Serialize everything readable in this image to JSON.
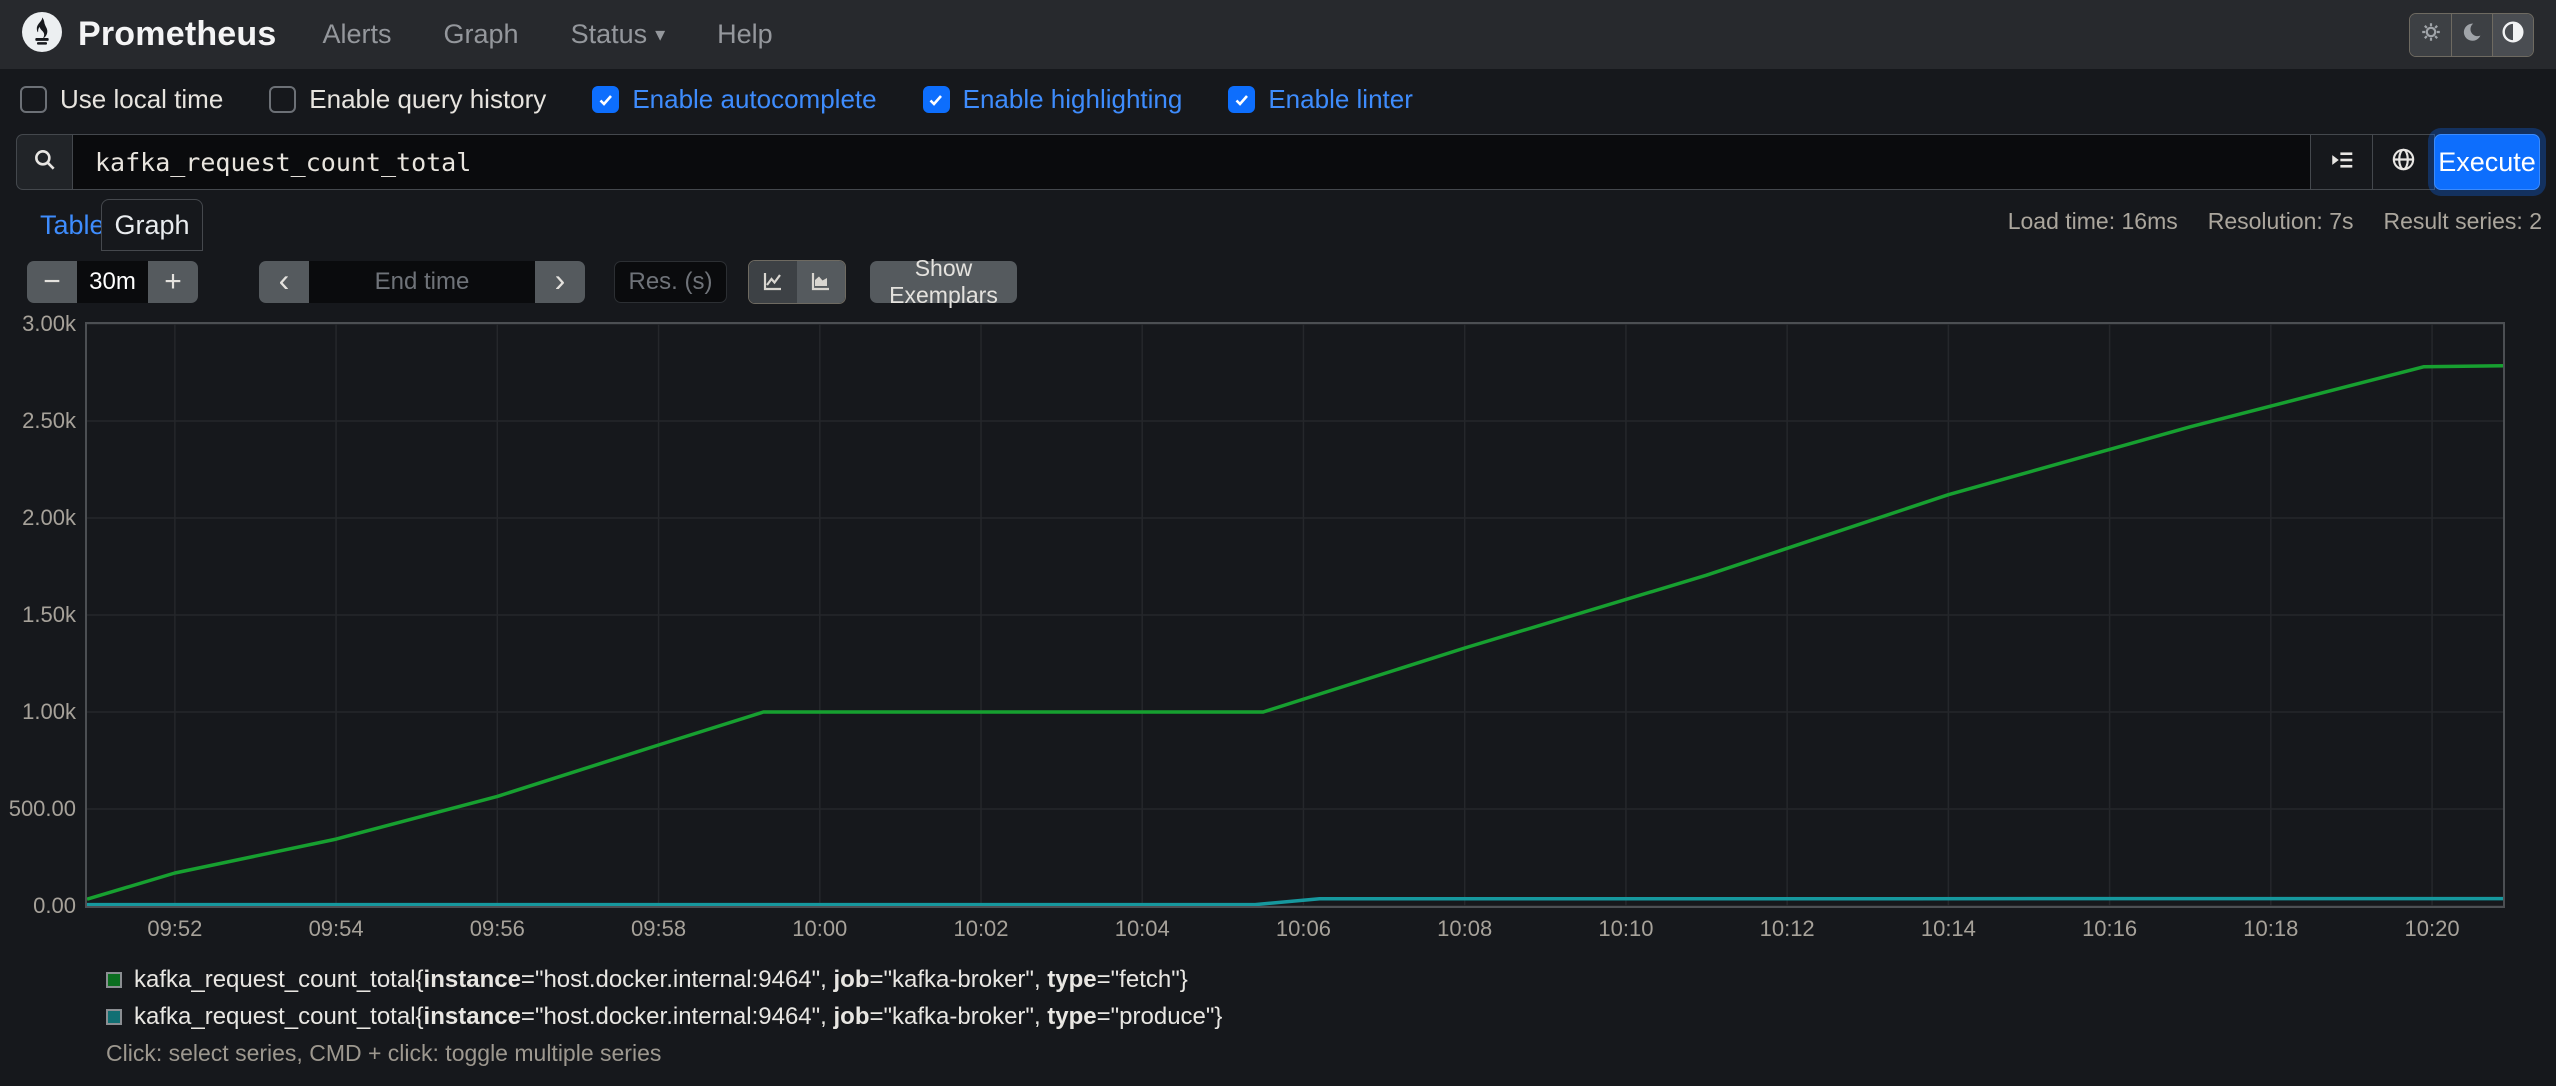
{
  "navbar": {
    "brand": "Prometheus",
    "items": [
      {
        "label": "Alerts",
        "caret": ""
      },
      {
        "label": "Graph",
        "caret": ""
      },
      {
        "label": "Status",
        "caret": "▾"
      },
      {
        "label": "Help",
        "caret": ""
      }
    ]
  },
  "theme_toggle": {
    "active_index": 2,
    "buttons": [
      "light",
      "dark",
      "auto"
    ]
  },
  "options": [
    {
      "label": "Use local time",
      "checked": false
    },
    {
      "label": "Enable query history",
      "checked": false
    },
    {
      "label": "Enable autocomplete",
      "checked": true
    },
    {
      "label": "Enable highlighting",
      "checked": true
    },
    {
      "label": "Enable linter",
      "checked": true
    }
  ],
  "query": {
    "value": "kafka_request_count_total",
    "execute_label": "Execute"
  },
  "tabs": {
    "table": "Table",
    "graph": "Graph"
  },
  "stats": {
    "load_time": "Load time: 16ms",
    "resolution": "Resolution: 7s",
    "result_series": "Result series: 2"
  },
  "controls": {
    "minus": "−",
    "plus": "+",
    "range_value": "30m",
    "prev": "‹",
    "next": "›",
    "end_time_placeholder": "End time",
    "res_placeholder": "Res. (s)",
    "show_exemplars": "Show Exemplars"
  },
  "chart_data": {
    "type": "line",
    "title": "",
    "xlabel": "",
    "ylabel": "",
    "grid": true,
    "legend_position": "bottom",
    "x_domain_minutes": [
      50.91,
      80.88
    ],
    "y_domain": [
      0,
      3000
    ],
    "x_ticks": [
      {
        "m": 52,
        "label": "09:52"
      },
      {
        "m": 54,
        "label": "09:54"
      },
      {
        "m": 56,
        "label": "09:56"
      },
      {
        "m": 58,
        "label": "09:58"
      },
      {
        "m": 60,
        "label": "10:00"
      },
      {
        "m": 62,
        "label": "10:02"
      },
      {
        "m": 64,
        "label": "10:04"
      },
      {
        "m": 66,
        "label": "10:06"
      },
      {
        "m": 68,
        "label": "10:08"
      },
      {
        "m": 70,
        "label": "10:10"
      },
      {
        "m": 72,
        "label": "10:12"
      },
      {
        "m": 74,
        "label": "10:14"
      },
      {
        "m": 76,
        "label": "10:16"
      },
      {
        "m": 78,
        "label": "10:18"
      },
      {
        "m": 80,
        "label": "10:20"
      }
    ],
    "y_ticks": [
      {
        "v": 0,
        "label": "0.00"
      },
      {
        "v": 500,
        "label": "500.00"
      },
      {
        "v": 1000,
        "label": "1.00k"
      },
      {
        "v": 1500,
        "label": "1.50k"
      },
      {
        "v": 2000,
        "label": "2.00k"
      },
      {
        "v": 2500,
        "label": "2.50k"
      },
      {
        "v": 3000,
        "label": "3.00k"
      }
    ],
    "series": [
      {
        "name": "kafka_request_count_total type=fetch",
        "color": "#17a030",
        "points": [
          [
            50.91,
            35
          ],
          [
            52,
            170
          ],
          [
            54,
            345
          ],
          [
            56,
            565
          ],
          [
            58,
            830
          ],
          [
            59.3,
            1000
          ],
          [
            65.5,
            1000
          ],
          [
            68,
            1330
          ],
          [
            71,
            1705
          ],
          [
            74,
            2120
          ],
          [
            77,
            2470
          ],
          [
            79.9,
            2780
          ],
          [
            80.88,
            2785
          ]
        ]
      },
      {
        "name": "kafka_request_count_total type=produce",
        "color": "#16989e",
        "points": [
          [
            50.91,
            7
          ],
          [
            65.4,
            7
          ],
          [
            66.2,
            37
          ],
          [
            80.88,
            38
          ]
        ]
      }
    ]
  },
  "legend": {
    "items": [
      {
        "swatch_fill": "#0b6e20",
        "parts": [
          {
            "t": "kafka_request_count_total{"
          },
          {
            "t": "instance",
            "b": 1
          },
          {
            "t": "=\"host.docker.internal:9464\", "
          },
          {
            "t": "job",
            "b": 1
          },
          {
            "t": "=\"kafka-broker\", "
          },
          {
            "t": "type",
            "b": 1
          },
          {
            "t": "=\"fetch\"}"
          }
        ]
      },
      {
        "swatch_fill": "#116f73",
        "parts": [
          {
            "t": "kafka_request_count_total{"
          },
          {
            "t": "instance",
            "b": 1
          },
          {
            "t": "=\"host.docker.internal:9464\", "
          },
          {
            "t": "job",
            "b": 1
          },
          {
            "t": "=\"kafka-broker\", "
          },
          {
            "t": "type",
            "b": 1
          },
          {
            "t": "=\"produce\"}"
          }
        ]
      }
    ],
    "note": "Click: select series, CMD + click: toggle multiple series"
  }
}
